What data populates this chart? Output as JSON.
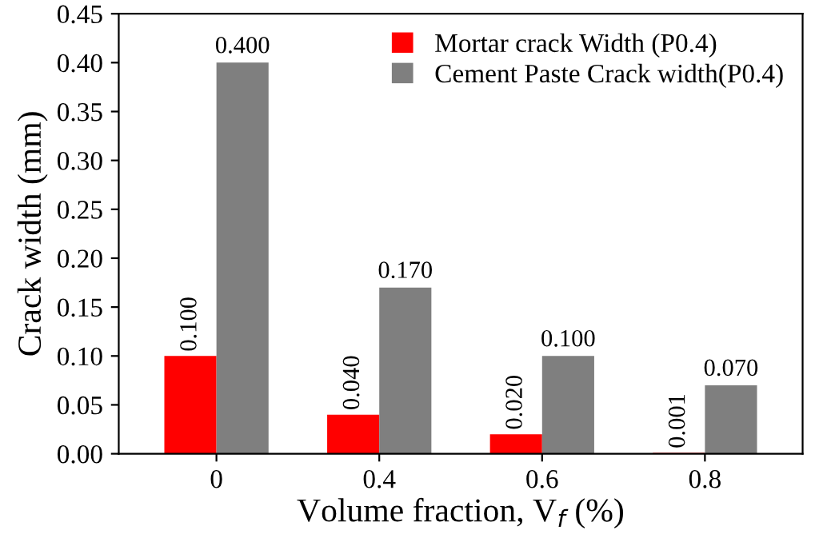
{
  "chart_data": {
    "type": "bar",
    "xlabel": "Volume fraction, V$_{f}$ (%)",
    "ylabel": "Crack width (mm)",
    "categories": [
      "0",
      "0.4",
      "0.6",
      "0.8"
    ],
    "series": [
      {
        "name": "Mortar crack Width (P0.4)",
        "color": "#ff0000",
        "values": [
          0.1,
          0.04,
          0.02,
          0.001
        ],
        "value_labels": [
          "0.100",
          "0.040",
          "0.020",
          "0.001"
        ]
      },
      {
        "name": "Cement Paste Crack width(P0.4)",
        "color": "#7f7f7f",
        "values": [
          0.4,
          0.17,
          0.1,
          0.07
        ],
        "value_labels": [
          "0.400",
          "0.170",
          "0.100",
          "0.070"
        ]
      }
    ],
    "ylim": [
      0,
      0.45
    ],
    "yticks": [
      {
        "value": 0,
        "label": "0.00"
      },
      {
        "value": 0.05,
        "label": "0.05"
      },
      {
        "value": 0.1,
        "label": "0.10"
      },
      {
        "value": 0.15,
        "label": "0.15"
      },
      {
        "value": 0.2,
        "label": "0.20"
      },
      {
        "value": 0.25,
        "label": "0.25"
      },
      {
        "value": 0.3,
        "label": "0.30"
      },
      {
        "value": 0.35,
        "label": "0.35"
      },
      {
        "value": 0.4,
        "label": "0.40"
      },
      {
        "value": 0.45,
        "label": "0.45"
      }
    ],
    "grid": false,
    "legend": "top right"
  }
}
